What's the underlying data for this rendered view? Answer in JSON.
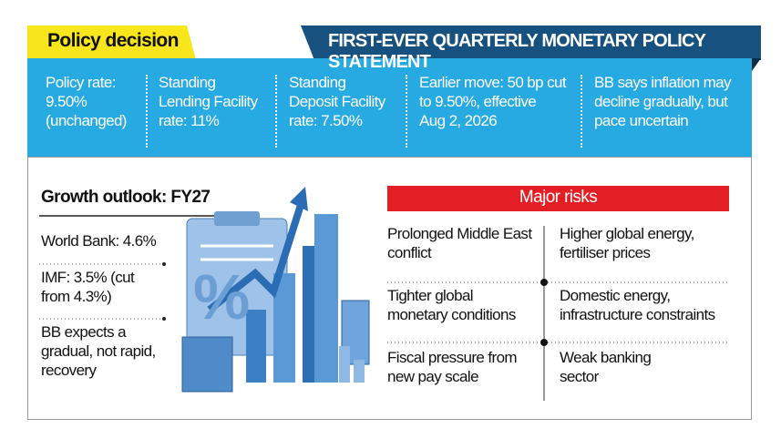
{
  "header": {
    "tag": "Policy decision",
    "title": "FIRST-EVER QUARTERLY MONETARY POLICY STATEMENT"
  },
  "facts": [
    {
      "lines": [
        "Policy rate:",
        "9.50%",
        "(unchanged)"
      ]
    },
    {
      "lines": [
        "Standing",
        "Lending Facility",
        "rate: 11%"
      ]
    },
    {
      "lines": [
        "Standing",
        "Deposit Facility",
        "rate: 7.50%"
      ]
    },
    {
      "lines": [
        "Earlier move: 50 bp cut",
        "to 9.50%, effective",
        "Aug 2, 2026"
      ]
    },
    {
      "lines": [
        "BB says inflation may",
        "decline gradually, but",
        "pace uncertain"
      ]
    }
  ],
  "growth": {
    "title": "Growth outlook: FY27",
    "items": [
      {
        "lines": [
          "World Bank: 4.6%"
        ]
      },
      {
        "lines": [
          "IMF: 3.5% (cut",
          "from 4.3%)"
        ]
      },
      {
        "lines": [
          "BB expects a",
          "gradual, not rapid,",
          "recovery"
        ]
      }
    ]
  },
  "risks": {
    "title": "Major risks",
    "items": [
      {
        "lines": [
          "Prolonged Middle East",
          "conflict"
        ]
      },
      {
        "lines": [
          "Higher global energy,",
          "fertiliser prices"
        ]
      },
      {
        "lines": [
          "Tighter global",
          "monetary conditions"
        ]
      },
      {
        "lines": [
          "Domestic energy,",
          "infrastructure constraints"
        ]
      },
      {
        "lines": [
          "Fiscal pressure from",
          "new pay scale"
        ]
      },
      {
        "lines": [
          "Weak banking",
          "sector"
        ]
      }
    ]
  }
}
